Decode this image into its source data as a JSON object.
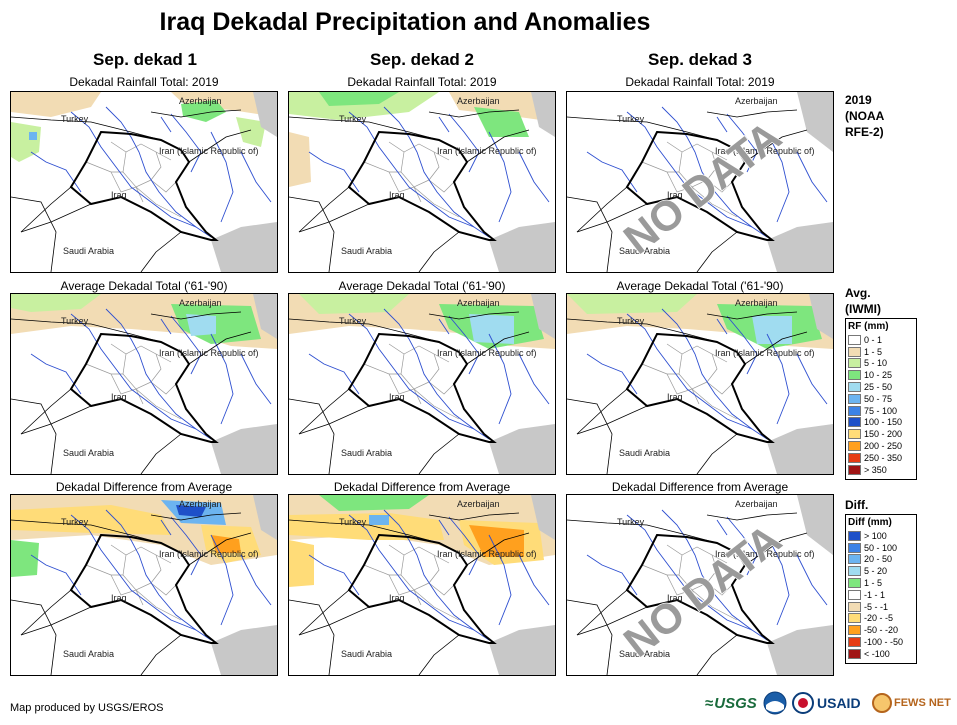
{
  "title": "Iraq Dekadal Precipitation and Anomalies",
  "columns": [
    "Sep. dekad 1",
    "Sep. dekad 2",
    "Sep. dekad 3"
  ],
  "row_titles": [
    "Dekadal Rainfall Total: 2019",
    "Average Dekadal Total ('61-'90)",
    "Dekadal Difference from Average"
  ],
  "row_labels": [
    [
      "2019",
      "(NOAA",
      "RFE-2)"
    ],
    [
      "Avg.",
      "(IWMI)"
    ],
    [
      "Diff."
    ]
  ],
  "map_labels": {
    "azerbaijan": "Azerbaijan",
    "turkey": "Turkey",
    "iran": "Iran  (Islamic Republic of)",
    "iraq": "Iraq",
    "saudi": "Saudi Arabia"
  },
  "no_data_text": "NO DATA",
  "rf_legend": {
    "title": "RF (mm)",
    "items": [
      {
        "label": "0 - 1",
        "color": "#ffffff"
      },
      {
        "label": "1 - 5",
        "color": "#f2dcb4"
      },
      {
        "label": "5 - 10",
        "color": "#c8f0a0"
      },
      {
        "label": "10 - 25",
        "color": "#7ee67e"
      },
      {
        "label": "25 - 50",
        "color": "#a0dcf0"
      },
      {
        "label": "50 - 75",
        "color": "#6cb4f0"
      },
      {
        "label": "75 - 100",
        "color": "#3c82e6"
      },
      {
        "label": "100 - 150",
        "color": "#1e50c8"
      },
      {
        "label": "150 - 200",
        "color": "#ffdc78"
      },
      {
        "label": "200 - 250",
        "color": "#ffa01e"
      },
      {
        "label": "250 - 350",
        "color": "#e63c14"
      },
      {
        "label": "> 350",
        "color": "#a01414"
      }
    ]
  },
  "diff_legend": {
    "title": "Diff (mm)",
    "items": [
      {
        "label": "> 100",
        "color": "#1e50c8"
      },
      {
        "label": "50 - 100",
        "color": "#3c82e6"
      },
      {
        "label": "20 - 50",
        "color": "#6cb4f0"
      },
      {
        "label": "5 - 20",
        "color": "#a0dcf0"
      },
      {
        "label": "1 - 5",
        "color": "#7ee67e"
      },
      {
        "label": "-1 - 1",
        "color": "#ffffff"
      },
      {
        "label": "-5 - -1",
        "color": "#f2dcb4"
      },
      {
        "label": "-20 - -5",
        "color": "#ffdc78"
      },
      {
        "label": "-50 - -20",
        "color": "#ffa01e"
      },
      {
        "label": "-100 - -50",
        "color": "#e63c14"
      },
      {
        "label": "< -100",
        "color": "#a01414"
      }
    ]
  },
  "credit": "Map produced by USGS/EROS",
  "logos": {
    "usgs": "USGS",
    "usaid": "USAID",
    "fewsnet": "FEWS NET"
  },
  "colors": {
    "border": "#000000",
    "river": "#2e4fd0",
    "sea": "#c8c8c8",
    "province": "#999999"
  }
}
